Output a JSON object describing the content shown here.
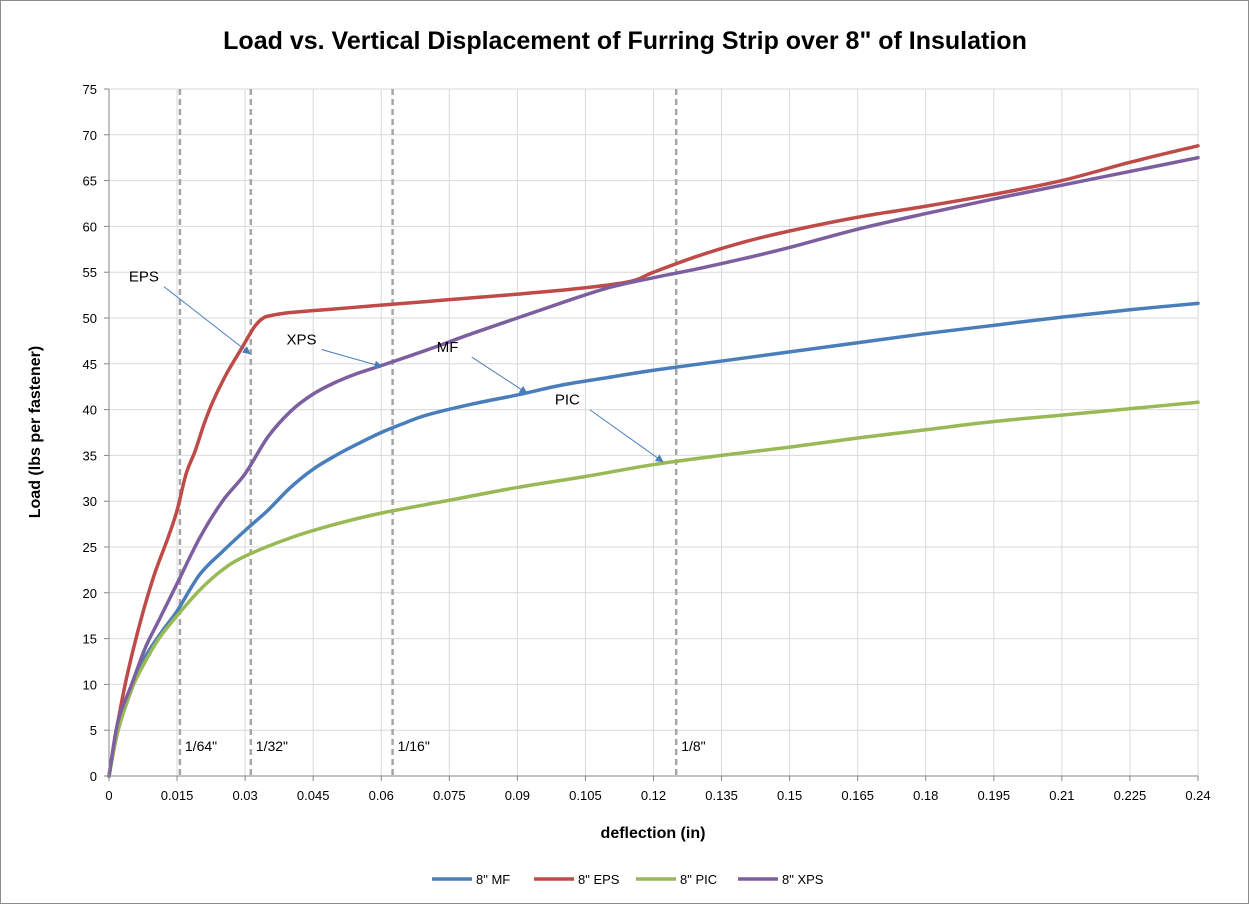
{
  "chart_data": {
    "type": "line",
    "title": "Load vs. Vertical Displacement of Furring Strip over 8\" of Insulation",
    "xlabel": "deflection (in)",
    "ylabel": "Load (lbs per fastener)",
    "xlim": [
      0,
      0.24
    ],
    "ylim": [
      0,
      75
    ],
    "x_ticks": [
      "0",
      "0.015",
      "0.03",
      "0.045",
      "0.06",
      "0.075",
      "0.09",
      "0.105",
      "0.12",
      "0.135",
      "0.15",
      "0.165",
      "0.18",
      "0.195",
      "0.21",
      "0.225",
      "0.24"
    ],
    "y_ticks": [
      "0",
      "5",
      "10",
      "15",
      "20",
      "25",
      "30",
      "35",
      "40",
      "45",
      "50",
      "55",
      "60",
      "65",
      "70",
      "75"
    ],
    "grid": true,
    "legend_position": "bottom",
    "series": [
      {
        "name": "8\" MF",
        "color": "#4a7ebb",
        "x": [
          0,
          0.002,
          0.005,
          0.008,
          0.012,
          0.015,
          0.02,
          0.025,
          0.03,
          0.035,
          0.04,
          0.045,
          0.05,
          0.055,
          0.06,
          0.065,
          0.07,
          0.08,
          0.09,
          0.1,
          0.11,
          0.12,
          0.135,
          0.15,
          0.165,
          0.18,
          0.195,
          0.21,
          0.225,
          0.24
        ],
        "y": [
          0,
          5,
          9.5,
          13,
          16,
          18,
          22,
          24.5,
          26.8,
          29,
          31.5,
          33.5,
          35,
          36.3,
          37.5,
          38.5,
          39.4,
          40.6,
          41.6,
          42.7,
          43.5,
          44.3,
          45.3,
          46.3,
          47.3,
          48.3,
          49.2,
          50.1,
          50.9,
          51.6
        ]
      },
      {
        "name": "8\" EPS",
        "color": "#be4b48",
        "x": [
          0,
          0.002,
          0.004,
          0.007,
          0.01,
          0.013,
          0.015,
          0.017,
          0.019,
          0.021,
          0.023,
          0.026,
          0.029,
          0.032,
          0.034,
          0.036,
          0.04,
          0.05,
          0.06,
          0.075,
          0.09,
          0.105,
          0.115,
          0.12,
          0.13,
          0.14,
          0.15,
          0.165,
          0.18,
          0.195,
          0.21,
          0.225,
          0.24
        ],
        "y": [
          0,
          6,
          11,
          17,
          22,
          26,
          29,
          33,
          35.5,
          38.5,
          41,
          44,
          46.5,
          49,
          50,
          50.3,
          50.6,
          51,
          51.4,
          52,
          52.6,
          53.3,
          54,
          55,
          56.8,
          58.3,
          59.5,
          61,
          62.2,
          63.5,
          65,
          67,
          68.8
        ]
      },
      {
        "name": "8\" PIC",
        "color": "#98b954",
        "x": [
          0,
          0.002,
          0.005,
          0.008,
          0.011,
          0.015,
          0.02,
          0.025,
          0.03,
          0.04,
          0.05,
          0.06,
          0.075,
          0.09,
          0.105,
          0.12,
          0.135,
          0.15,
          0.165,
          0.18,
          0.195,
          0.21,
          0.225,
          0.24
        ],
        "y": [
          0,
          5,
          9.5,
          12.5,
          15,
          17.5,
          20.3,
          22.5,
          24,
          26,
          27.5,
          28.7,
          30.1,
          31.5,
          32.7,
          34,
          35,
          35.9,
          36.9,
          37.8,
          38.7,
          39.4,
          40.1,
          40.8
        ]
      },
      {
        "name": "8\" XPS",
        "color": "#7d5fa0",
        "x": [
          0,
          0.002,
          0.005,
          0.008,
          0.011,
          0.015,
          0.02,
          0.025,
          0.03,
          0.035,
          0.04,
          0.045,
          0.05,
          0.055,
          0.06,
          0.07,
          0.08,
          0.09,
          0.1,
          0.11,
          0.12,
          0.13,
          0.14,
          0.15,
          0.165,
          0.18,
          0.195,
          0.21,
          0.225,
          0.24
        ],
        "y": [
          0,
          6,
          10,
          14,
          17,
          21,
          26,
          30,
          33,
          37,
          39.8,
          41.7,
          43,
          44,
          44.8,
          46.5,
          48.3,
          50,
          51.7,
          53.3,
          54.4,
          55.4,
          56.5,
          57.7,
          59.7,
          61.4,
          63,
          64.5,
          66,
          67.5
        ]
      }
    ],
    "reference_lines": [
      {
        "x": 0.015625,
        "label": "1/64\""
      },
      {
        "x": 0.03125,
        "label": "1/32\""
      },
      {
        "x": 0.0625,
        "label": "1/16\""
      },
      {
        "x": 0.125,
        "label": "1/8\""
      }
    ],
    "annotations": [
      {
        "text": "EPS",
        "point_x": 0.0315,
        "point_y": 46
      },
      {
        "text": "XPS",
        "point_x": 0.0605,
        "point_y": 44.6
      },
      {
        "text": "MF",
        "point_x": 0.0925,
        "point_y": 41.7
      },
      {
        "text": "PIC",
        "point_x": 0.1225,
        "point_y": 34.2
      }
    ]
  }
}
